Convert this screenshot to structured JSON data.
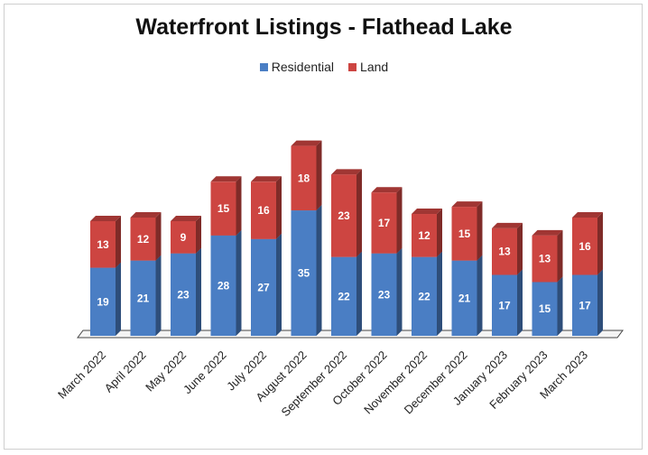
{
  "chart_data": {
    "type": "bar",
    "stacked": true,
    "title": "Waterfront Listings - Flathead Lake",
    "xlabel": "",
    "ylabel": "",
    "ylim": [
      0,
      58
    ],
    "legend_position": "top-center",
    "categories": [
      "March 2022",
      "April 2022",
      "May 2022",
      "June 2022",
      "July 2022",
      "August 2022",
      "September 2022",
      "October 2022",
      "November 2022",
      "December 2022",
      "January 2023",
      "February 2023",
      "March 2023"
    ],
    "series": [
      {
        "name": "Residential",
        "color": "#4a7ec4",
        "values": [
          19,
          21,
          23,
          28,
          27,
          35,
          22,
          23,
          22,
          21,
          17,
          15,
          17
        ]
      },
      {
        "name": "Land",
        "color": "#cd4541",
        "values": [
          13,
          12,
          9,
          15,
          16,
          18,
          23,
          17,
          12,
          15,
          13,
          13,
          16
        ]
      }
    ]
  }
}
